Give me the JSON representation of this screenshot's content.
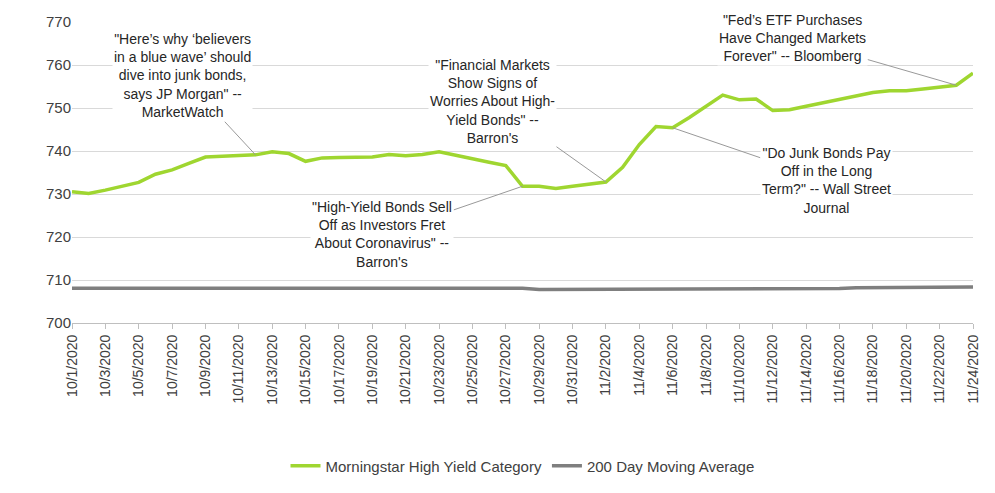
{
  "chart_data": {
    "type": "line",
    "categories": [
      "10/1/2020",
      null,
      "10/3/2020",
      null,
      "10/5/2020",
      null,
      "10/7/2020",
      null,
      "10/9/2020",
      null,
      "10/11/2020",
      null,
      "10/13/2020",
      null,
      "10/15/2020",
      null,
      "10/17/2020",
      null,
      "10/19/2020",
      null,
      "10/21/2020",
      null,
      "10/23/2020",
      null,
      "10/25/2020",
      null,
      "10/27/2020",
      null,
      "10/29/2020",
      null,
      "10/31/2020",
      null,
      "11/2/2020",
      null,
      "11/4/2020",
      null,
      "11/6/2020",
      null,
      "11/8/2020",
      null,
      "11/10/2020",
      null,
      "11/12/2020",
      null,
      "11/14/2020",
      null,
      "11/16/2020",
      null,
      "11/18/2020",
      null,
      "11/20/2020",
      null,
      "11/22/2020",
      null,
      "11/24/2020"
    ],
    "series": [
      {
        "name": "Morningstar High Yield Category",
        "color": "#9fd630",
        "values": [
          730.5,
          730.1,
          730.9,
          731.8,
          732.7,
          734.6,
          735.6,
          737.1,
          738.6,
          738.8,
          738.9,
          739.1,
          739.8,
          739.4,
          737.6,
          738.4,
          738.5,
          738.5,
          738.6,
          739.2,
          738.9,
          739.2,
          739.8,
          739.0,
          738.1,
          737.4,
          736.6,
          731.8,
          731.8,
          731.3,
          731.8,
          732.3,
          732.8,
          736.2,
          741.5,
          745.7,
          745.4,
          747.8,
          750.5,
          753.0,
          751.9,
          752.1,
          749.4,
          749.6,
          750.4,
          751.2,
          752.0,
          752.7,
          753.6,
          754.0,
          754.0,
          754.4,
          754.9,
          755.3,
          758.1
        ]
      },
      {
        "name": "200 Day Moving Average",
        "color": "#7f7f7f",
        "values": [
          708.1,
          708.1,
          708.1,
          708.1,
          708.1,
          708.1,
          708.1,
          708.1,
          708.1,
          708.1,
          708.1,
          708.1,
          708.1,
          708.1,
          708.1,
          708.1,
          708.1,
          708.1,
          708.1,
          708.1,
          708.1,
          708.1,
          708.1,
          708.1,
          708.1,
          708.1,
          708.1,
          708.1,
          707.8,
          707.8,
          707.8,
          707.8,
          707.8,
          707.8,
          707.8,
          707.8,
          707.8,
          707.8,
          707.8,
          707.8,
          707.8,
          707.8,
          708.0,
          708.0,
          708.0,
          708.0,
          708.0,
          708.2,
          708.2,
          708.2,
          708.4,
          708.4,
          708.4,
          708.4,
          708.4
        ]
      }
    ],
    "ylim": [
      700,
      770
    ],
    "yticks": [
      700,
      710,
      720,
      730,
      740,
      750,
      760,
      770
    ],
    "grid": true,
    "legend": "bottom",
    "annotations": [
      {
        "text": [
          "\"Here’s why ‘believers",
          "in a blue wave’ should",
          "dive into junk bonds,",
          "says JP Morgan\" --",
          "MarketWatch"
        ]
      },
      {
        "text": [
          "\"High-Yield Bonds Sell",
          "Off as Investors Fret",
          "About Coronavirus\" --",
          "Barron's"
        ]
      },
      {
        "text": [
          "\"Financial Markets",
          "Show Signs of",
          "Worries About High-",
          "Yield Bonds\" --",
          "Barron's"
        ]
      },
      {
        "text": [
          "\"Do Junk Bonds Pay",
          "Off in the Long",
          "Term?\" -- Wall Street",
          "Journal"
        ]
      },
      {
        "text": [
          "\"Fed’s ETF Purchases",
          "Have Changed Markets",
          "Forever\" -- Bloomberg"
        ]
      }
    ]
  }
}
